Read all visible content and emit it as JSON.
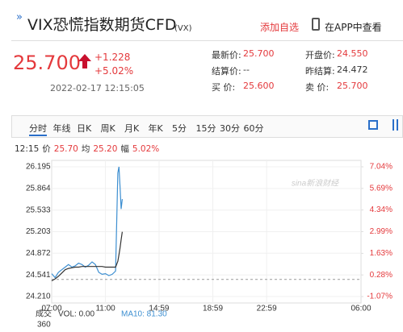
{
  "header": {
    "title": "VIX恐慌指数期货CFD",
    "code": "(VX)",
    "actions": [
      "添加自选",
      "在APP中查看"
    ]
  },
  "quote": {
    "price": "25.700",
    "change": "+1.228",
    "change_pct": "+5.02%",
    "time": "2022-02-17 12:15:05",
    "fields": [
      {
        "label": "最新价:",
        "value": "25.700"
      },
      {
        "label": "开盘价:",
        "value": "24.550"
      },
      {
        "label": "结算价:",
        "value": "--"
      },
      {
        "label": "昨结算:",
        "value": "24.472"
      },
      {
        "label": "买 价:",
        "value": "25.600"
      },
      {
        "label": "卖 价:",
        "value": "25.700"
      }
    ]
  },
  "tabs": [
    "分时",
    "年线",
    "日K",
    "周K",
    "月K",
    "年K",
    "5分",
    "15分",
    "30分",
    "60分"
  ],
  "info": {
    "time": "12:15",
    "items": [
      {
        "label": "价",
        "value": "25.70"
      },
      {
        "label": "均",
        "value": "25.20"
      },
      {
        "label": "幅",
        "value": "5.02%"
      }
    ]
  },
  "chart_data": {
    "type": "line",
    "x": [
      "07:00",
      "07:15",
      "07:30",
      "07:45",
      "08:00",
      "08:15",
      "08:30",
      "08:45",
      "09:00",
      "09:15",
      "09:30",
      "09:45",
      "10:00",
      "10:15",
      "10:30",
      "10:45",
      "11:00",
      "11:15",
      "11:30",
      "11:45",
      "11:55",
      "12:00",
      "12:05",
      "12:10",
      "12:15"
    ],
    "series": [
      {
        "color": "#3d8fd1",
        "values": [
          24.56,
          24.5,
          24.58,
          24.62,
          24.66,
          24.7,
          24.66,
          24.68,
          24.72,
          24.7,
          24.66,
          24.69,
          24.74,
          24.7,
          24.58,
          24.55,
          24.56,
          24.53,
          24.55,
          24.6,
          26.1,
          26.195,
          25.9,
          25.55,
          25.7
        ]
      },
      {
        "color": "#333333",
        "values": [
          24.45,
          24.48,
          24.52,
          24.57,
          24.62,
          24.64,
          24.65,
          24.66,
          24.66,
          24.67,
          24.67,
          24.67,
          24.67,
          24.67,
          24.67,
          24.67,
          24.66,
          24.66,
          24.66,
          24.66,
          24.75,
          24.85,
          24.95,
          25.08,
          25.2
        ]
      }
    ],
    "xlim": [
      "07:00",
      "06:00"
    ],
    "xticks": [
      "07:00",
      "11:00",
      "14:59",
      "18:59",
      "22:59",
      "06:00"
    ],
    "ylim": [
      24.21,
      26.195
    ],
    "yticks": [
      {
        "value": 24.21,
        "label": "24.210"
      },
      24.541,
      24.872,
      25.203,
      25.533,
      25.864,
      26.195
    ],
    "y2lim": [
      -1.07,
      7.04
    ],
    "y2ticks": [
      {
        "value": -1.07,
        "label": "-1.07%"
      },
      {
        "value": 0.28,
        "label": "0.28%"
      },
      {
        "value": 1.63,
        "label": "1.63%"
      },
      {
        "value": 2.99,
        "label": "2.99%"
      },
      {
        "value": 4.34,
        "label": "4.34%"
      },
      {
        "value": 5.69,
        "label": "5.69%"
      },
      {
        "value": 7.04,
        "label": "7.04%"
      }
    ],
    "reference_line": 24.472,
    "watermark": "sina新浪财经",
    "grid": true
  },
  "volume": {
    "label": "成交",
    "items": [
      "VOL: 0.00",
      "MA10: 81.30"
    ],
    "ticks": [
      "360"
    ]
  }
}
